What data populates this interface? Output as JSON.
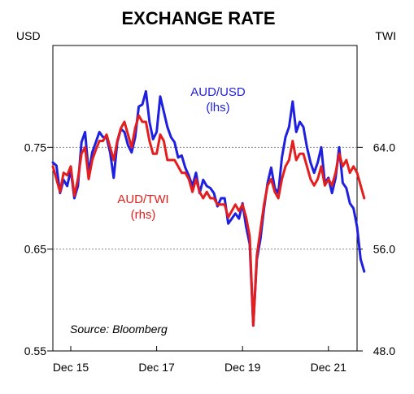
{
  "chart_data": {
    "type": "line",
    "title": "EXCHANGE RATE",
    "left_unit": "USD",
    "right_unit": "TWI",
    "x_tick_labels": [
      "Dec 15",
      "Dec 17",
      "Dec 19",
      "Dec 21"
    ],
    "x_ticks": [
      "2015-12",
      "2017-12",
      "2019-12",
      "2021-12"
    ],
    "x_range": [
      "2015-07",
      "2022-08"
    ],
    "left_axis": {
      "range": [
        0.55,
        0.85
      ],
      "tick_values": [
        0.55,
        0.65,
        0.75
      ],
      "tick_labels": [
        "0.55",
        "0.65",
        "0.75"
      ]
    },
    "right_axis": {
      "range": [
        48,
        72
      ],
      "tick_values": [
        48,
        56,
        64
      ],
      "tick_labels": [
        "48.0",
        "56.0",
        "64.0"
      ]
    },
    "grid": "horizontal dotted at labelled ticks",
    "series": [
      {
        "label_line1": "AUD/USD",
        "label_line2": "(lhs)",
        "axis": "left",
        "color": "#1f1fe0",
        "points": [
          [
            "2015-07",
            0.735
          ],
          [
            "2015-08",
            0.732
          ],
          [
            "2015-09",
            0.705
          ],
          [
            "2015-10",
            0.718
          ],
          [
            "2015-11",
            0.712
          ],
          [
            "2015-12",
            0.728
          ],
          [
            "2016-01",
            0.7
          ],
          [
            "2016-02",
            0.712
          ],
          [
            "2016-03",
            0.755
          ],
          [
            "2016-04",
            0.765
          ],
          [
            "2016-05",
            0.725
          ],
          [
            "2016-06",
            0.745
          ],
          [
            "2016-07",
            0.755
          ],
          [
            "2016-08",
            0.765
          ],
          [
            "2016-09",
            0.76
          ],
          [
            "2016-10",
            0.76
          ],
          [
            "2016-11",
            0.745
          ],
          [
            "2016-12",
            0.72
          ],
          [
            "2017-01",
            0.755
          ],
          [
            "2017-02",
            0.768
          ],
          [
            "2017-03",
            0.765
          ],
          [
            "2017-04",
            0.752
          ],
          [
            "2017-05",
            0.745
          ],
          [
            "2017-06",
            0.76
          ],
          [
            "2017-07",
            0.79
          ],
          [
            "2017-08",
            0.792
          ],
          [
            "2017-09",
            0.805
          ],
          [
            "2017-10",
            0.775
          ],
          [
            "2017-11",
            0.758
          ],
          [
            "2017-12",
            0.765
          ],
          [
            "2018-01",
            0.8
          ],
          [
            "2018-02",
            0.785
          ],
          [
            "2018-03",
            0.77
          ],
          [
            "2018-04",
            0.76
          ],
          [
            "2018-05",
            0.755
          ],
          [
            "2018-06",
            0.74
          ],
          [
            "2018-07",
            0.742
          ],
          [
            "2018-08",
            0.73
          ],
          [
            "2018-09",
            0.722
          ],
          [
            "2018-10",
            0.712
          ],
          [
            "2018-11",
            0.725
          ],
          [
            "2018-12",
            0.705
          ],
          [
            "2019-01",
            0.718
          ],
          [
            "2019-02",
            0.712
          ],
          [
            "2019-03",
            0.71
          ],
          [
            "2019-04",
            0.705
          ],
          [
            "2019-05",
            0.692
          ],
          [
            "2019-06",
            0.7
          ],
          [
            "2019-07",
            0.7
          ],
          [
            "2019-08",
            0.675
          ],
          [
            "2019-09",
            0.68
          ],
          [
            "2019-10",
            0.685
          ],
          [
            "2019-11",
            0.68
          ],
          [
            "2019-12",
            0.695
          ],
          [
            "2020-01",
            0.672
          ],
          [
            "2020-02",
            0.655
          ],
          [
            "2020-03",
            0.575
          ],
          [
            "2020-04",
            0.64
          ],
          [
            "2020-05",
            0.66
          ],
          [
            "2020-06",
            0.69
          ],
          [
            "2020-07",
            0.715
          ],
          [
            "2020-08",
            0.73
          ],
          [
            "2020-09",
            0.71
          ],
          [
            "2020-10",
            0.705
          ],
          [
            "2020-11",
            0.74
          ],
          [
            "2020-12",
            0.76
          ],
          [
            "2021-01",
            0.77
          ],
          [
            "2021-02",
            0.795
          ],
          [
            "2021-03",
            0.765
          ],
          [
            "2021-04",
            0.775
          ],
          [
            "2021-05",
            0.77
          ],
          [
            "2021-06",
            0.75
          ],
          [
            "2021-07",
            0.735
          ],
          [
            "2021-08",
            0.725
          ],
          [
            "2021-09",
            0.735
          ],
          [
            "2021-10",
            0.75
          ],
          [
            "2021-11",
            0.715
          ],
          [
            "2021-12",
            0.72
          ],
          [
            "2022-01",
            0.705
          ],
          [
            "2022-02",
            0.72
          ],
          [
            "2022-03",
            0.75
          ],
          [
            "2022-04",
            0.715
          ],
          [
            "2022-05",
            0.71
          ],
          [
            "2022-06",
            0.695
          ],
          [
            "2022-07",
            0.69
          ],
          [
            "2022-08",
            0.672
          ],
          [
            "2022-09",
            0.64
          ],
          [
            "2022-10",
            0.628
          ]
        ]
      },
      {
        "label_line1": "AUD/TWI",
        "label_line2": "(rhs)",
        "axis": "right",
        "color": "#e41e1e",
        "points": [
          [
            "2015-07",
            62.5
          ],
          [
            "2015-08",
            61.5
          ],
          [
            "2015-09",
            60.5
          ],
          [
            "2015-10",
            62.0
          ],
          [
            "2015-11",
            61.8
          ],
          [
            "2015-12",
            62.5
          ],
          [
            "2016-01",
            60.2
          ],
          [
            "2016-02",
            61.5
          ],
          [
            "2016-03",
            63.5
          ],
          [
            "2016-04",
            64.0
          ],
          [
            "2016-05",
            61.5
          ],
          [
            "2016-06",
            63.0
          ],
          [
            "2016-07",
            63.8
          ],
          [
            "2016-08",
            64.5
          ],
          [
            "2016-09",
            64.5
          ],
          [
            "2016-10",
            65.0
          ],
          [
            "2016-11",
            64.0
          ],
          [
            "2016-12",
            63.0
          ],
          [
            "2017-01",
            64.5
          ],
          [
            "2017-02",
            65.5
          ],
          [
            "2017-03",
            66.0
          ],
          [
            "2017-04",
            65.0
          ],
          [
            "2017-05",
            64.0
          ],
          [
            "2017-06",
            65.5
          ],
          [
            "2017-07",
            66.5
          ],
          [
            "2017-08",
            66.0
          ],
          [
            "2017-09",
            66.0
          ],
          [
            "2017-10",
            64.5
          ],
          [
            "2017-11",
            63.5
          ],
          [
            "2017-12",
            63.5
          ],
          [
            "2018-01",
            65.0
          ],
          [
            "2018-02",
            64.5
          ],
          [
            "2018-03",
            63.0
          ],
          [
            "2018-04",
            63.0
          ],
          [
            "2018-05",
            63.0
          ],
          [
            "2018-06",
            62.5
          ],
          [
            "2018-07",
            62.0
          ],
          [
            "2018-08",
            62.0
          ],
          [
            "2018-09",
            61.5
          ],
          [
            "2018-10",
            60.5
          ],
          [
            "2018-11",
            61.5
          ],
          [
            "2018-12",
            60.5
          ],
          [
            "2019-01",
            60.0
          ],
          [
            "2019-02",
            60.5
          ],
          [
            "2019-03",
            60.0
          ],
          [
            "2019-04",
            60.0
          ],
          [
            "2019-05",
            59.5
          ],
          [
            "2019-06",
            59.5
          ],
          [
            "2019-07",
            59.5
          ],
          [
            "2019-08",
            58.5
          ],
          [
            "2019-09",
            59.0
          ],
          [
            "2019-10",
            59.5
          ],
          [
            "2019-11",
            59.0
          ],
          [
            "2019-12",
            59.5
          ],
          [
            "2020-01",
            58.5
          ],
          [
            "2020-02",
            57.0
          ],
          [
            "2020-03",
            50.0
          ],
          [
            "2020-04",
            55.5
          ],
          [
            "2020-05",
            57.5
          ],
          [
            "2020-06",
            59.5
          ],
          [
            "2020-07",
            61.0
          ],
          [
            "2020-08",
            61.5
          ],
          [
            "2020-09",
            60.5
          ],
          [
            "2020-10",
            60.0
          ],
          [
            "2020-11",
            61.5
          ],
          [
            "2020-12",
            62.5
          ],
          [
            "2021-01",
            63.0
          ],
          [
            "2021-02",
            64.5
          ],
          [
            "2021-03",
            63.0
          ],
          [
            "2021-04",
            63.5
          ],
          [
            "2021-05",
            63.5
          ],
          [
            "2021-06",
            62.5
          ],
          [
            "2021-07",
            61.5
          ],
          [
            "2021-08",
            61.0
          ],
          [
            "2021-09",
            61.5
          ],
          [
            "2021-10",
            62.5
          ],
          [
            "2021-11",
            61.0
          ],
          [
            "2021-12",
            61.5
          ],
          [
            "2022-01",
            61.0
          ],
          [
            "2022-02",
            62.0
          ],
          [
            "2022-03",
            63.5
          ],
          [
            "2022-04",
            62.5
          ],
          [
            "2022-05",
            63.0
          ],
          [
            "2022-06",
            62.0
          ],
          [
            "2022-07",
            62.5
          ],
          [
            "2022-08",
            62.0
          ],
          [
            "2022-09",
            61.0
          ],
          [
            "2022-10",
            60.0
          ]
        ]
      }
    ],
    "annotation": "Source: Bloomberg"
  }
}
